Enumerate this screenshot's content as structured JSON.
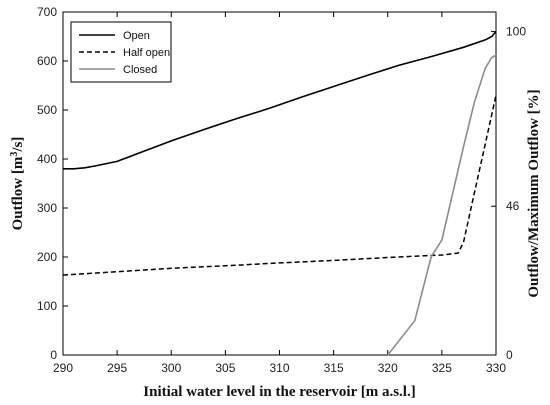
{
  "chart_data": {
    "type": "line",
    "xlabel": "Initial water level in the reservoir [m a.s.l.]",
    "ylabel": "Outflow [m³/s]",
    "ylabel_right": "Outflow/Maximum Outflow [%]",
    "xlim": [
      290,
      330
    ],
    "ylim": [
      0,
      700
    ],
    "xticks": [
      "290",
      "295",
      "300",
      "305",
      "310",
      "315",
      "320",
      "325",
      "330"
    ],
    "yticks": [
      "0",
      "100",
      "200",
      "300",
      "400",
      "500",
      "600",
      "700"
    ],
    "yticks_right": [
      {
        "label": "100",
        "value": 100
      },
      {
        "label": "46",
        "value": 46
      },
      {
        "label": "0",
        "value": 0
      }
    ],
    "legend_position": "top-left",
    "grid": false,
    "series": [
      {
        "name": "Open",
        "color": "#000000",
        "dash": "solid",
        "points": [
          [
            290,
            380
          ],
          [
            291,
            380
          ],
          [
            292,
            382
          ],
          [
            293,
            386
          ],
          [
            295,
            395
          ],
          [
            297,
            412
          ],
          [
            300,
            437
          ],
          [
            303,
            460
          ],
          [
            306,
            482
          ],
          [
            309,
            503
          ],
          [
            312,
            526
          ],
          [
            315,
            548
          ],
          [
            318,
            570
          ],
          [
            321,
            591
          ],
          [
            324,
            609
          ],
          [
            327,
            628
          ],
          [
            329,
            643
          ],
          [
            329.6,
            650
          ],
          [
            330,
            660
          ]
        ]
      },
      {
        "name": "Half open",
        "color": "#000000",
        "dash": "dashed",
        "points": [
          [
            290,
            163
          ],
          [
            295,
            170
          ],
          [
            300,
            177
          ],
          [
            305,
            182
          ],
          [
            310,
            188
          ],
          [
            315,
            193
          ],
          [
            320,
            199
          ],
          [
            325,
            204
          ],
          [
            326.5,
            208
          ],
          [
            327,
            230
          ],
          [
            328,
            330
          ],
          [
            329,
            430
          ],
          [
            330,
            530
          ]
        ]
      },
      {
        "name": "Closed",
        "color": "#8c8c8c",
        "dash": "solid",
        "points": [
          [
            320,
            0
          ],
          [
            322.5,
            70
          ],
          [
            324,
            200
          ],
          [
            325,
            235
          ],
          [
            326,
            330
          ],
          [
            327,
            425
          ],
          [
            328,
            515
          ],
          [
            329,
            585
          ],
          [
            329.6,
            607
          ],
          [
            330,
            612
          ]
        ]
      }
    ]
  }
}
